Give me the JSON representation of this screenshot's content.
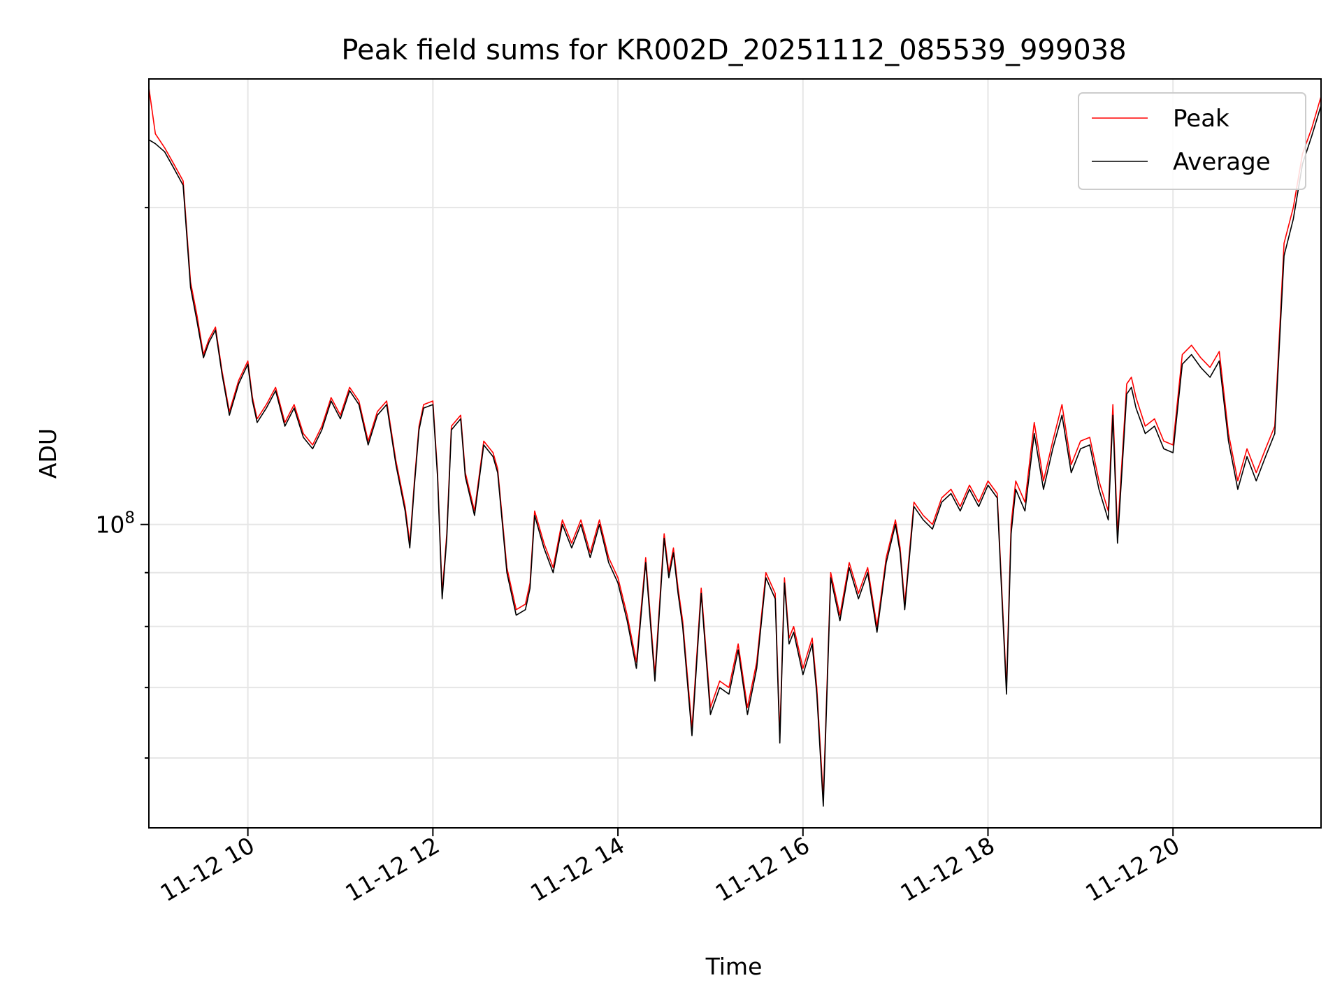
{
  "chart_data": {
    "type": "line",
    "title": "Peak field sums for KR002D_20251112_085539_999038",
    "xlabel": "Time",
    "ylabel": "ADU",
    "yscale": "log",
    "grid": true,
    "legend_position": "top-right",
    "xlim": [
      8.93,
      21.6
    ],
    "ylim": [
      51500000,
      265000000
    ],
    "x_ticks": [
      {
        "value": 10,
        "label": "11-12 10"
      },
      {
        "value": 12,
        "label": "11-12 12"
      },
      {
        "value": 14,
        "label": "11-12 14"
      },
      {
        "value": 16,
        "label": "11-12 16"
      },
      {
        "value": 18,
        "label": "11-12 18"
      },
      {
        "value": 20,
        "label": "11-12 20"
      }
    ],
    "y_major_ticks": [
      {
        "value": 100000000,
        "base": "10",
        "exponent": "8"
      }
    ],
    "y_minor_ticks": [
      60000000,
      70000000,
      80000000,
      90000000,
      200000000
    ],
    "series": [
      {
        "name": "Peak",
        "color": "#ff0000",
        "x_hours": [
          8.93,
          9.0,
          9.1,
          9.2,
          9.3,
          9.38,
          9.45,
          9.52,
          9.58,
          9.65,
          9.72,
          9.8,
          9.9,
          10.0,
          10.05,
          10.1,
          10.2,
          10.3,
          10.4,
          10.5,
          10.6,
          10.7,
          10.8,
          10.9,
          11.0,
          11.1,
          11.2,
          11.3,
          11.4,
          11.5,
          11.6,
          11.7,
          11.75,
          11.8,
          11.85,
          11.9,
          12.0,
          12.05,
          12.1,
          12.15,
          12.2,
          12.3,
          12.35,
          12.45,
          12.55,
          12.65,
          12.7,
          12.8,
          12.9,
          13.0,
          13.05,
          13.1,
          13.2,
          13.3,
          13.4,
          13.5,
          13.6,
          13.7,
          13.8,
          13.9,
          14.0,
          14.1,
          14.2,
          14.3,
          14.4,
          14.5,
          14.55,
          14.6,
          14.65,
          14.7,
          14.8,
          14.9,
          15.0,
          15.1,
          15.2,
          15.3,
          15.4,
          15.5,
          15.6,
          15.7,
          15.75,
          15.8,
          15.85,
          15.9,
          16.0,
          16.1,
          16.15,
          16.22,
          16.3,
          16.4,
          16.5,
          16.6,
          16.7,
          16.8,
          16.9,
          17.0,
          17.05,
          17.1,
          17.2,
          17.3,
          17.4,
          17.5,
          17.6,
          17.7,
          17.8,
          17.9,
          18.0,
          18.1,
          18.2,
          18.25,
          18.3,
          18.4,
          18.5,
          18.6,
          18.7,
          18.8,
          18.9,
          19.0,
          19.1,
          19.2,
          19.3,
          19.35,
          19.4,
          19.5,
          19.55,
          19.6,
          19.7,
          19.8,
          19.9,
          20.0,
          20.1,
          20.2,
          20.3,
          20.4,
          20.5,
          20.6,
          20.7,
          20.8,
          20.9,
          21.0,
          21.1,
          21.2,
          21.3,
          21.4,
          21.5,
          21.6
        ],
        "values": [
          260000000,
          235000000,
          228000000,
          220000000,
          212000000,
          170000000,
          158000000,
          145000000,
          150000000,
          154000000,
          140000000,
          128000000,
          137000000,
          143000000,
          132000000,
          126000000,
          130000000,
          135000000,
          125000000,
          130000000,
          122000000,
          119000000,
          124000000,
          132000000,
          127000000,
          135000000,
          131000000,
          120000000,
          128000000,
          131000000,
          115000000,
          104000000,
          96000000,
          110000000,
          124000000,
          130000000,
          131000000,
          112000000,
          86000000,
          98000000,
          124000000,
          127000000,
          112000000,
          103000000,
          120000000,
          117000000,
          113000000,
          91000000,
          83000000,
          84000000,
          88000000,
          103000000,
          96000000,
          91000000,
          101000000,
          96000000,
          101000000,
          94000000,
          101000000,
          93000000,
          89000000,
          82000000,
          74000000,
          93000000,
          72000000,
          98000000,
          90000000,
          95000000,
          87000000,
          81000000,
          64000000,
          87000000,
          67000000,
          71000000,
          70000000,
          77000000,
          67000000,
          74000000,
          90000000,
          86000000,
          63000000,
          89000000,
          78000000,
          80000000,
          73000000,
          78000000,
          70000000,
          55000000,
          90000000,
          82000000,
          92000000,
          86000000,
          91000000,
          80000000,
          93000000,
          101000000,
          95000000,
          84000000,
          105000000,
          102000000,
          100000000,
          106000000,
          108000000,
          104000000,
          109000000,
          105000000,
          110000000,
          107000000,
          70000000,
          100000000,
          110000000,
          105000000,
          125000000,
          110000000,
          120000000,
          130000000,
          114000000,
          120000000,
          121000000,
          110000000,
          103000000,
          130000000,
          98000000,
          136000000,
          138000000,
          132000000,
          124000000,
          126000000,
          120000000,
          119000000,
          145000000,
          148000000,
          144000000,
          141000000,
          146000000,
          122000000,
          110000000,
          118000000,
          112000000,
          118000000,
          124000000,
          185000000,
          200000000,
          225000000,
          238000000,
          255000000
        ]
      },
      {
        "name": "Average",
        "color": "#000000",
        "x_hours": [
          8.93,
          9.0,
          9.1,
          9.2,
          9.3,
          9.38,
          9.45,
          9.52,
          9.58,
          9.65,
          9.72,
          9.8,
          9.9,
          10.0,
          10.05,
          10.1,
          10.2,
          10.3,
          10.4,
          10.5,
          10.6,
          10.7,
          10.8,
          10.9,
          11.0,
          11.1,
          11.2,
          11.3,
          11.4,
          11.5,
          11.6,
          11.7,
          11.75,
          11.8,
          11.85,
          11.9,
          12.0,
          12.05,
          12.1,
          12.15,
          12.2,
          12.3,
          12.35,
          12.45,
          12.55,
          12.65,
          12.7,
          12.8,
          12.9,
          13.0,
          13.05,
          13.1,
          13.2,
          13.3,
          13.4,
          13.5,
          13.6,
          13.7,
          13.8,
          13.9,
          14.0,
          14.1,
          14.2,
          14.3,
          14.4,
          14.5,
          14.55,
          14.6,
          14.65,
          14.7,
          14.8,
          14.9,
          15.0,
          15.1,
          15.2,
          15.3,
          15.4,
          15.5,
          15.6,
          15.7,
          15.75,
          15.8,
          15.85,
          15.9,
          16.0,
          16.1,
          16.15,
          16.22,
          16.3,
          16.4,
          16.5,
          16.6,
          16.7,
          16.8,
          16.9,
          17.0,
          17.05,
          17.1,
          17.2,
          17.3,
          17.4,
          17.5,
          17.6,
          17.7,
          17.8,
          17.9,
          18.0,
          18.1,
          18.2,
          18.25,
          18.3,
          18.4,
          18.5,
          18.6,
          18.7,
          18.8,
          18.9,
          19.0,
          19.1,
          19.2,
          19.3,
          19.35,
          19.4,
          19.5,
          19.55,
          19.6,
          19.7,
          19.8,
          19.9,
          20.0,
          20.1,
          20.2,
          20.3,
          20.4,
          20.5,
          20.6,
          20.7,
          20.8,
          20.9,
          21.0,
          21.1,
          21.2,
          21.3,
          21.4,
          21.5,
          21.6
        ],
        "values": [
          232000000,
          230000000,
          226000000,
          218000000,
          210000000,
          168000000,
          156000000,
          144000000,
          149000000,
          153000000,
          139000000,
          127000000,
          136000000,
          142000000,
          131000000,
          125000000,
          129000000,
          134000000,
          124000000,
          129000000,
          121000000,
          118000000,
          123000000,
          131000000,
          126000000,
          134000000,
          130000000,
          119000000,
          127000000,
          130000000,
          114000000,
          103000000,
          95000000,
          109000000,
          123000000,
          129000000,
          130000000,
          111000000,
          85000000,
          97000000,
          123000000,
          126000000,
          111000000,
          102000000,
          119000000,
          116000000,
          112000000,
          90000000,
          82000000,
          83000000,
          87000000,
          102000000,
          95000000,
          90000000,
          100000000,
          95000000,
          100000000,
          93000000,
          100000000,
          92000000,
          88000000,
          81000000,
          73000000,
          92000000,
          71000000,
          97000000,
          89000000,
          94000000,
          86000000,
          80000000,
          63000000,
          86000000,
          66000000,
          70000000,
          69000000,
          76000000,
          66000000,
          73000000,
          89000000,
          85000000,
          62000000,
          88000000,
          77000000,
          79000000,
          72000000,
          77000000,
          69000000,
          54000000,
          89000000,
          81000000,
          91000000,
          85000000,
          90000000,
          79000000,
          92000000,
          100000000,
          94000000,
          83000000,
          104000000,
          101000000,
          99000000,
          105000000,
          107000000,
          103000000,
          108000000,
          104000000,
          109000000,
          106000000,
          69000000,
          98000000,
          108000000,
          103000000,
          122000000,
          108000000,
          118000000,
          127000000,
          112000000,
          118000000,
          119000000,
          108000000,
          101000000,
          127000000,
          96000000,
          133000000,
          135000000,
          129000000,
          122000000,
          124000000,
          118000000,
          117000000,
          142000000,
          145000000,
          141000000,
          138000000,
          143000000,
          120000000,
          108000000,
          116000000,
          110000000,
          116000000,
          122000000,
          180000000,
          195000000,
          220000000,
          234000000,
          250000000
        ]
      }
    ]
  }
}
